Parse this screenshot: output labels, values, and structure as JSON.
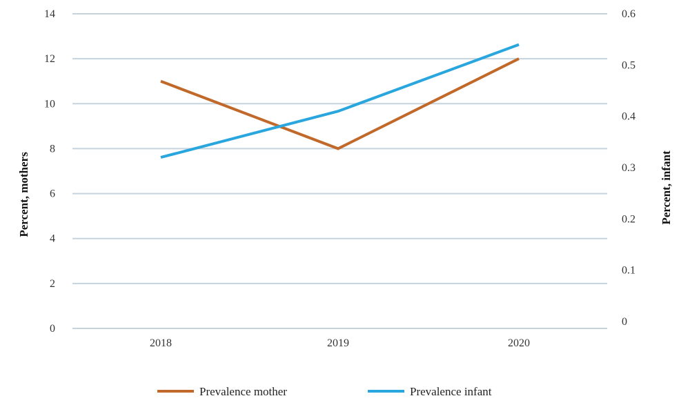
{
  "chart_data": {
    "type": "line",
    "title": "",
    "categories": [
      "2018",
      "2019",
      "2020"
    ],
    "y_left": {
      "label": "Percent, mothers",
      "ylim": [
        0,
        14
      ],
      "ticks": [
        "0",
        "2",
        "4",
        "6",
        "8",
        "10",
        "12",
        "14"
      ]
    },
    "y_right": {
      "label": "Percent, infant",
      "ylim": [
        0,
        0.6
      ],
      "ticks": [
        "0",
        "0.1",
        "0.2",
        "0.3",
        "0.4",
        "0.5",
        "0.6"
      ]
    },
    "grid": true,
    "legend_position": "bottom",
    "series": [
      {
        "name": "Prevalence mother",
        "axis": "left",
        "color": "#c0692a",
        "values": [
          11.0,
          8.0,
          12.0
        ]
      },
      {
        "name": "Prevalence infant",
        "axis": "right",
        "color": "#29a6de",
        "values": [
          0.32,
          0.41,
          0.54
        ]
      }
    ]
  }
}
